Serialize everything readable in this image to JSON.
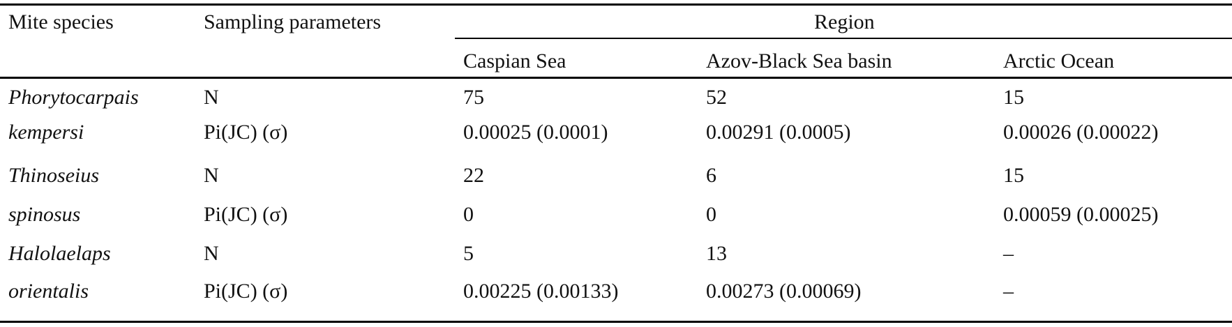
{
  "header": {
    "col_species": "Mite species",
    "col_params": "Sampling parameters",
    "region_group": "Region",
    "regions": [
      "Caspian Sea",
      "Azov-Black Sea basin",
      "Arctic Ocean"
    ]
  },
  "rows": [
    {
      "species_line1": "Phorytocarpais",
      "species_line2": "kempersi",
      "param_n": "N",
      "param_pi": "Pi(JC) (σ)",
      "n": [
        "75",
        "52",
        "15"
      ],
      "pi": [
        "0.00025 (0.0001)",
        "0.00291 (0.0005)",
        "0.00026 (0.00022)"
      ]
    },
    {
      "species_line1": "Thinoseius",
      "species_line2": "spinosus",
      "param_n": "N",
      "param_pi": "Pi(JC) (σ)",
      "n": [
        "22",
        "6",
        "15"
      ],
      "pi": [
        "0",
        "0",
        "0.00059 (0.00025)"
      ]
    },
    {
      "species_line1": "Halolaelaps",
      "species_line2": "orientalis",
      "param_n": "N",
      "param_pi": "Pi(JC) (σ)",
      "n": [
        "5",
        "13",
        "–"
      ],
      "pi": [
        "0.00225 (0.00133)",
        "0.00273 (0.00069)",
        "–"
      ]
    }
  ]
}
